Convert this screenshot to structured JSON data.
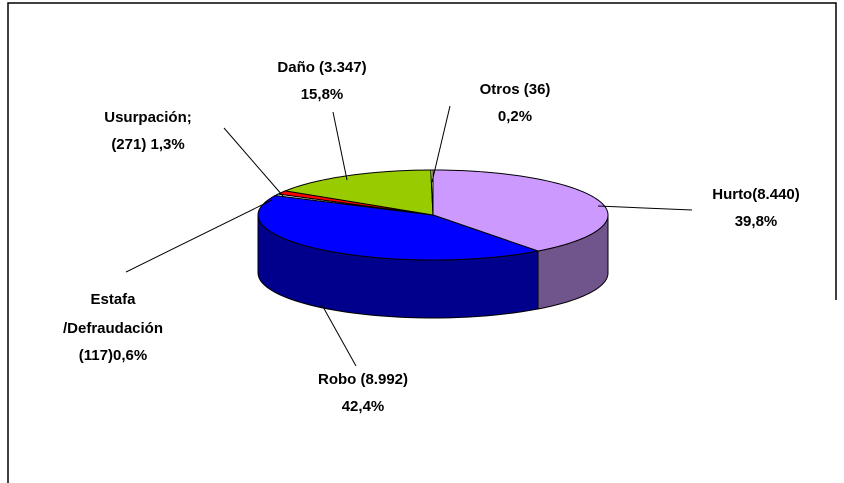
{
  "chart_data": {
    "type": "pie3d",
    "categories": [
      "Hurto(8.440)",
      "Robo (8.992)",
      "Estafa\n/Defraudación",
      "Usurpación;",
      "Daño (3.347)",
      "Otros (36)"
    ],
    "values": [
      39.8,
      42.4,
      0.6,
      1.3,
      15.8,
      0.2
    ],
    "value_labels": [
      "39,8%",
      "42,4%",
      "(117)0,6%",
      "(271) 1,3%",
      "15,8%",
      "0,2%"
    ],
    "colors": [
      "#cc99ff",
      "#0000ff",
      "#ffffff",
      "#ff0000",
      "#99cc00",
      "#ffffcc"
    ]
  }
}
